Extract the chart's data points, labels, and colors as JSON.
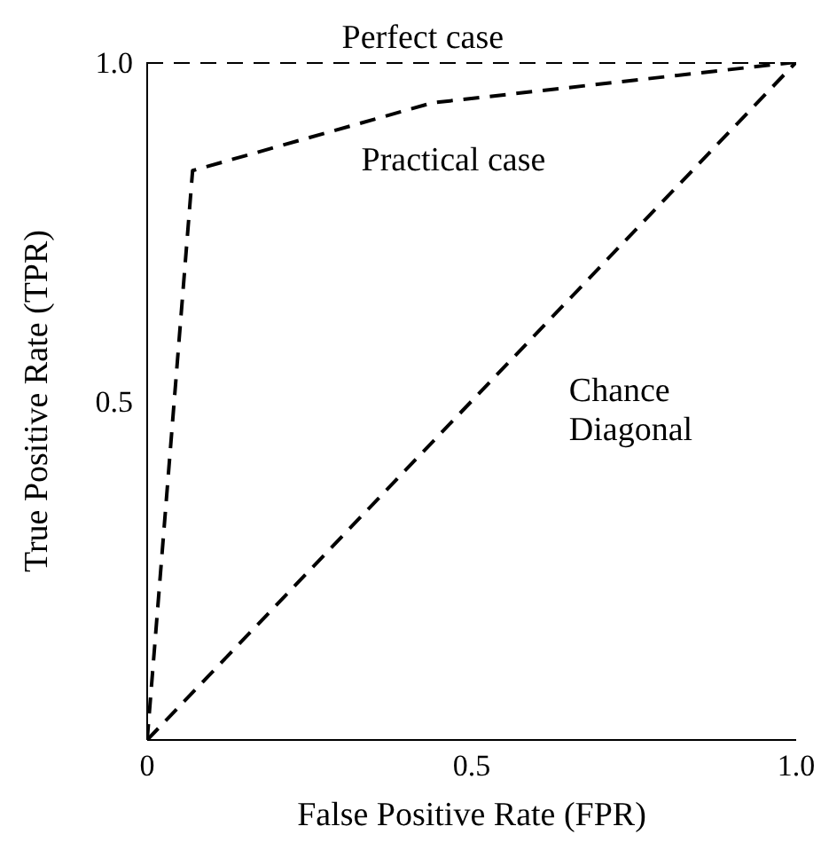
{
  "chart_data": {
    "type": "line",
    "xlabel": "False Positive Rate (FPR)",
    "ylabel": "True Positive Rate (TPR)",
    "xlim": [
      0,
      1
    ],
    "xticks": [
      0,
      0.5,
      {
        "value": 1,
        "label": "1.0"
      }
    ],
    "ylim": [
      0,
      1
    ],
    "yticks": [
      0.5,
      {
        "value": 1,
        "label": "1.0"
      }
    ],
    "line_style": "dashed",
    "grid": false,
    "series": [
      {
        "name": "Perfect case",
        "color": "#000000",
        "x": [
          0,
          1
        ],
        "values": [
          1,
          1
        ]
      },
      {
        "name": "Practical case",
        "color": "#000000",
        "x": [
          0,
          0.07,
          0.44,
          1
        ],
        "values": [
          0,
          0.84,
          0.94,
          1
        ]
      },
      {
        "name": "Chance Diagonal",
        "color": "#000000",
        "x": [
          0,
          0.5,
          1
        ],
        "values": [
          0,
          0.5,
          1
        ]
      }
    ]
  }
}
